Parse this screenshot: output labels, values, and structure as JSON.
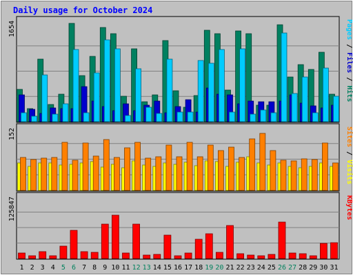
{
  "chart_data": {
    "type": "bar",
    "title": "Daily usage for October 2024",
    "categories": [
      "1",
      "2",
      "3",
      "4",
      "5",
      "6",
      "7",
      "8",
      "9",
      "10",
      "11",
      "12",
      "13",
      "14",
      "15",
      "16",
      "17",
      "18",
      "19",
      "20",
      "21",
      "22",
      "23",
      "24",
      "25",
      "26",
      "27",
      "28",
      "29",
      "30",
      "31"
    ],
    "weekend_days": [
      "5",
      "6",
      "12",
      "13",
      "19",
      "20",
      "26",
      "27"
    ],
    "panels": [
      {
        "id": "hits",
        "ymax": 1654,
        "ymax_label": "1654",
        "right_labels": [
          {
            "text": "Pages",
            "color": "#00ccff"
          },
          {
            "text": " / ",
            "color": "#000000"
          },
          {
            "text": "Files",
            "color": "#0000cc"
          },
          {
            "text": " / ",
            "color": "#000000"
          },
          {
            "text": "Hits",
            "color": "#008060"
          }
        ],
        "series": [
          {
            "name": "Hits",
            "color": "#008060",
            "values": [
              526,
              216,
              1021,
              278,
              449,
              1612,
              757,
              1069,
              1540,
              1444,
              411,
              1190,
              326,
              434,
              1323,
              508,
              240,
              424,
              1497,
              1435,
              514,
              1489,
              1437,
              272,
              265,
              1583,
              728,
              936,
              858,
              1131,
              452
            ]
          },
          {
            "name": "Files",
            "color": "#0000cc",
            "values": [
              438,
              198,
              137,
              229,
              210,
              211,
              579,
              333,
              244,
              182,
              291,
              181,
              275,
              335,
              145,
              242,
              356,
              152,
              554,
              452,
              443,
              294,
              333,
              323,
              323,
              342,
              438,
              302,
              264,
              226,
              266
            ]
          },
          {
            "name": "Pages",
            "color": "#00ccff",
            "values": [
              151,
              94,
              760,
              123,
              297,
              1177,
              151,
              796,
              1341,
              1192,
              100,
              866,
              234,
              134,
              1023,
              156,
              158,
              1003,
              955,
              1180,
              155,
              1198,
              127,
              187,
              148,
              1453,
              458,
              733,
              147,
              875,
              418
            ]
          }
        ]
      },
      {
        "id": "visits",
        "ymax": 152,
        "ymax_label": "152",
        "right_labels": [
          {
            "text": "Sites",
            "color": "#ff8000"
          },
          {
            "text": " / ",
            "color": "#000000"
          },
          {
            "text": "Visits",
            "color": "#ffff00"
          }
        ],
        "series": [
          {
            "name": "Visits",
            "color": "#ffff00",
            "values": [
              66,
              59,
              66,
              66,
              62,
              64,
              67,
              70,
              57,
              64,
              55,
              71,
              62,
              58,
              67,
              64,
              68,
              60,
              71,
              70,
              58,
              68,
              82,
              66,
              62,
              67,
              58,
              55,
              59,
              66,
              59
            ]
          },
          {
            "name": "Sites",
            "color": "#ff8000",
            "values": [
              80,
              75,
              78,
              80,
              117,
              73,
              115,
              83,
              124,
              81,
              104,
              117,
              78,
              82,
              110,
              82,
              117,
              82,
              110,
              97,
              105,
              80,
              125,
              139,
              97,
              74,
              71,
              77,
              75,
              116,
              67
            ]
          }
        ]
      },
      {
        "id": "kbytes",
        "ymax": 125847,
        "ymax_label": "125847",
        "right_labels": [
          {
            "text": "KBytes",
            "color": "#ff0000"
          }
        ],
        "series": [
          {
            "name": "KBytes",
            "color": "#ff0000",
            "values": [
              11500,
              5400,
              14500,
              5800,
              25300,
              56800,
              14500,
              13000,
              70500,
              88000,
              11200,
              70500,
              6600,
              7700,
              48000,
              5900,
              11300,
              39800,
              50200,
              12400,
              67000,
              9400,
              7300,
              6200,
              8200,
              73700,
              11000,
              9600,
              5400,
              30300,
              32600
            ]
          }
        ]
      }
    ]
  }
}
